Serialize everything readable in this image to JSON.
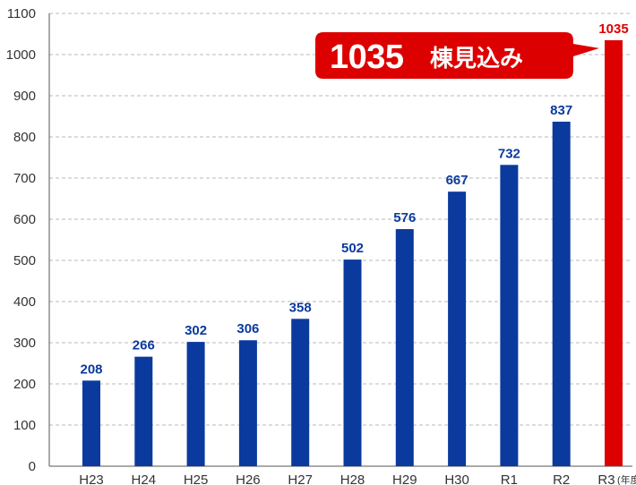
{
  "chart_data": {
    "type": "bar",
    "categories": [
      "H23",
      "H24",
      "H25",
      "H26",
      "H27",
      "H28",
      "H29",
      "H30",
      "R1",
      "R2",
      "R3"
    ],
    "values": [
      208,
      266,
      302,
      306,
      358,
      502,
      576,
      667,
      732,
      837,
      1035
    ],
    "value_labels": [
      "208",
      "266",
      "302",
      "306",
      "358",
      "502",
      "576",
      "667",
      "732",
      "837",
      "1035"
    ],
    "x_unit_note": "(年度)",
    "ylim": [
      0,
      1100
    ],
    "yticks": [
      0,
      100,
      200,
      300,
      400,
      500,
      600,
      700,
      800,
      900,
      1000,
      1100
    ],
    "grid": true,
    "colors": {
      "bar": "#0b3a9e",
      "highlight_bar": "#dd0000",
      "label": "#0b3a9e",
      "highlight_label": "#dd0000",
      "grid": "#b8b8b8",
      "axis": "#555555"
    },
    "highlight_index": 10,
    "callout": {
      "number": "1035",
      "suffix": "棟見込み",
      "color": "#dd0000"
    }
  }
}
